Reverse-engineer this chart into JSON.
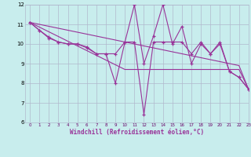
{
  "x": [
    0,
    1,
    2,
    3,
    4,
    5,
    6,
    7,
    8,
    9,
    10,
    11,
    12,
    13,
    14,
    15,
    16,
    17,
    18,
    19,
    20,
    21,
    22,
    23
  ],
  "series1": [
    11.1,
    10.7,
    10.3,
    10.1,
    10.0,
    10.0,
    9.8,
    9.5,
    9.5,
    8.0,
    10.1,
    12.0,
    9.0,
    10.4,
    12.0,
    10.0,
    10.9,
    9.0,
    10.0,
    9.5,
    10.0,
    8.6,
    8.3,
    7.7
  ],
  "series2": [
    11.1,
    10.7,
    10.35,
    10.1,
    10.0,
    10.0,
    9.85,
    9.5,
    9.5,
    9.5,
    10.1,
    10.1,
    6.4,
    10.1,
    10.1,
    10.1,
    10.1,
    9.5,
    10.1,
    9.5,
    10.1,
    8.6,
    8.3,
    7.7
  ],
  "trend1": [
    11.1,
    10.86,
    10.62,
    10.38,
    10.14,
    9.9,
    9.66,
    9.42,
    9.18,
    8.94,
    8.7,
    8.7,
    8.7,
    8.7,
    8.7,
    8.7,
    8.7,
    8.7,
    8.7,
    8.7,
    8.7,
    8.7,
    8.7,
    7.7
  ],
  "trend2": [
    11.1,
    11.0,
    10.9,
    10.8,
    10.7,
    10.6,
    10.5,
    10.4,
    10.3,
    10.2,
    10.1,
    10.0,
    9.9,
    9.8,
    9.7,
    9.6,
    9.5,
    9.4,
    9.3,
    9.2,
    9.1,
    9.0,
    8.9,
    7.7
  ],
  "color": "#993399",
  "bg_color": "#c8eded",
  "grid_color": "#b0b8cc",
  "xlabel": "Windchill (Refroidissement éolien,°C)",
  "ylim": [
    6,
    12
  ],
  "xlim": [
    -0.5,
    23
  ]
}
